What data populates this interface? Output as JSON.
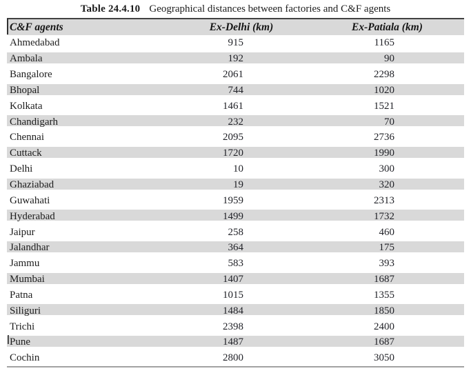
{
  "page": {
    "title_label": "Table 24.4.10",
    "title_caption": "Geographical distances between factories and C&F agents"
  },
  "table": {
    "columns": [
      {
        "key": "agent",
        "label": "C&F agents"
      },
      {
        "key": "delhi",
        "label": "Ex-Delhi (km)"
      },
      {
        "key": "patiala",
        "label": "Ex-Patiala (km)"
      }
    ],
    "rows": [
      {
        "agent": "Ahmedabad",
        "delhi": "915",
        "patiala": "1165"
      },
      {
        "agent": "Ambala",
        "delhi": "192",
        "patiala": "90"
      },
      {
        "agent": "Bangalore",
        "delhi": "2061",
        "patiala": "2298"
      },
      {
        "agent": "Bhopal",
        "delhi": "744",
        "patiala": "1020"
      },
      {
        "agent": "Kolkata",
        "delhi": "1461",
        "patiala": "1521"
      },
      {
        "agent": "Chandigarh",
        "delhi": "232",
        "patiala": "70"
      },
      {
        "agent": "Chennai",
        "delhi": "2095",
        "patiala": "2736"
      },
      {
        "agent": "Cuttack",
        "delhi": "1720",
        "patiala": "1990"
      },
      {
        "agent": "Delhi",
        "delhi": "10",
        "patiala": "300"
      },
      {
        "agent": "Ghaziabad",
        "delhi": "19",
        "patiala": "320"
      },
      {
        "agent": "Guwahati",
        "delhi": "1959",
        "patiala": "2313"
      },
      {
        "agent": "Hyderabad",
        "delhi": "1499",
        "patiala": "1732"
      },
      {
        "agent": "Jaipur",
        "delhi": "258",
        "patiala": "460"
      },
      {
        "agent": "Jalandhar",
        "delhi": "364",
        "patiala": "175"
      },
      {
        "agent": "Jammu",
        "delhi": "583",
        "patiala": "393"
      },
      {
        "agent": "Mumbai",
        "delhi": "1407",
        "patiala": "1687"
      },
      {
        "agent": "Patna",
        "delhi": "1015",
        "patiala": "1355"
      },
      {
        "agent": "Siliguri",
        "delhi": "1484",
        "patiala": "1850"
      },
      {
        "agent": "Trichi",
        "delhi": "2398",
        "patiala": "2400"
      },
      {
        "agent": "Pune",
        "delhi": "1487",
        "patiala": "1687"
      },
      {
        "agent": "Cochin",
        "delhi": "2800",
        "patiala": "3050"
      }
    ]
  },
  "colors": {
    "stripe_gray": "#d9d9d9",
    "top_rule": "#414141",
    "bottom_rule": "#a2a2a2",
    "text": "#1c1c1c"
  },
  "chart_data": {
    "type": "table",
    "title": "Table 24.4.10 Geographical distances between factories and C&F agents",
    "columns": [
      "C&F agents",
      "Ex-Delhi (km)",
      "Ex-Patiala (km)"
    ],
    "rows": [
      [
        "Ahmedabad",
        915,
        1165
      ],
      [
        "Ambala",
        192,
        90
      ],
      [
        "Bangalore",
        2061,
        2298
      ],
      [
        "Bhopal",
        744,
        1020
      ],
      [
        "Kolkata",
        1461,
        1521
      ],
      [
        "Chandigarh",
        232,
        70
      ],
      [
        "Chennai",
        2095,
        2736
      ],
      [
        "Cuttack",
        1720,
        1990
      ],
      [
        "Delhi",
        10,
        300
      ],
      [
        "Ghaziabad",
        19,
        320
      ],
      [
        "Guwahati",
        1959,
        2313
      ],
      [
        "Hyderabad",
        1499,
        1732
      ],
      [
        "Jaipur",
        258,
        460
      ],
      [
        "Jalandhar",
        364,
        175
      ],
      [
        "Jammu",
        583,
        393
      ],
      [
        "Mumbai",
        1407,
        1687
      ],
      [
        "Patna",
        1015,
        1355
      ],
      [
        "Siliguri",
        1484,
        1850
      ],
      [
        "Trichi",
        2398,
        2400
      ],
      [
        "Pune",
        1487,
        1687
      ],
      [
        "Cochin",
        2800,
        3050
      ]
    ]
  }
}
